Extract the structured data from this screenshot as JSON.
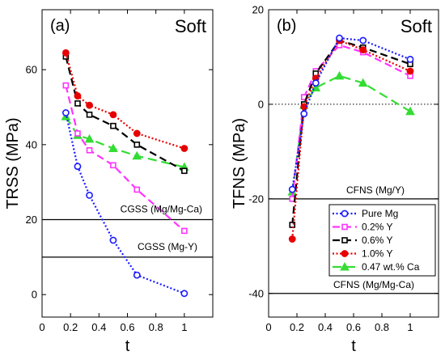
{
  "colors": {
    "Pure Mg": "#1a1aff",
    "0.2% Y": "#ff33ff",
    "0.6% Y": "#000000",
    "1.0% Y": "#e60000",
    "0.47 wt.% Ca": "#33dd33"
  },
  "chart_data": [
    {
      "type": "line",
      "panel_label": "(a)",
      "annotation": "Soft",
      "xlabel": "t",
      "ylabel": "TRSS (MPa)",
      "xlim": [
        0,
        1.2
      ],
      "ylim": [
        -6,
        76
      ],
      "xticks": [
        "0",
        "0.2",
        "0.4",
        "0.6",
        "0.8",
        "1"
      ],
      "yticks": [
        "0",
        "20",
        "40",
        "60"
      ],
      "x": [
        0.167,
        0.25,
        0.333,
        0.5,
        0.667,
        1.0
      ],
      "series": [
        {
          "name": "Pure Mg",
          "marker": "circle",
          "values": [
            48.5,
            34.2,
            26.5,
            14.5,
            5.2,
            0.3
          ]
        },
        {
          "name": "0.2% Y",
          "marker": "square",
          "values": [
            55.8,
            43.0,
            38.5,
            34.5,
            28.0,
            17.0
          ]
        },
        {
          "name": "0.6% Y",
          "marker": "square",
          "values": [
            63.5,
            51.0,
            48.0,
            45.0,
            40.0,
            33.0
          ]
        },
        {
          "name": "1.0% Y",
          "marker": "circle",
          "values": [
            64.5,
            53.0,
            50.5,
            48.0,
            43.0,
            39.0
          ]
        },
        {
          "name": "0.47 wt.% Ca",
          "marker": "triangle",
          "values": [
            47.5,
            42.5,
            41.5,
            39.0,
            37.0,
            34.0
          ]
        }
      ],
      "reference_lines": [
        {
          "label": "CGSS (Mg/Mg-Ca)",
          "value": 20
        },
        {
          "label": "CGSS (Mg-Y)",
          "value": 10
        }
      ]
    },
    {
      "type": "line",
      "panel_label": "(b)",
      "annotation": "Soft",
      "xlabel": "t",
      "ylabel": "TFNS (MPa)",
      "xlim": [
        0,
        1.2
      ],
      "ylim": [
        -45,
        20
      ],
      "xticks": [
        "0",
        "0.2",
        "0.4",
        "0.6",
        "0.8",
        "1"
      ],
      "yticks": [
        "-40",
        "-20",
        "0",
        "20"
      ],
      "x": [
        0.167,
        0.25,
        0.333,
        0.5,
        0.667,
        1.0
      ],
      "series": [
        {
          "name": "Pure Mg",
          "marker": "circle",
          "values": [
            -18.0,
            -2.0,
            4.5,
            14.0,
            13.5,
            9.5
          ]
        },
        {
          "name": "0.2% Y",
          "marker": "square",
          "values": [
            -20.0,
            1.5,
            7.0,
            12.5,
            11.0,
            6.0
          ]
        },
        {
          "name": "0.6% Y",
          "marker": "square",
          "values": [
            -25.5,
            0.0,
            6.5,
            13.5,
            12.0,
            8.5
          ]
        },
        {
          "name": "1.0% Y",
          "marker": "circle",
          "values": [
            -28.5,
            -0.5,
            5.5,
            13.5,
            11.5,
            7.0
          ]
        },
        {
          "name": "0.47 wt.% Ca",
          "marker": "triangle",
          "values": [
            -18.5,
            -0.2,
            3.5,
            6.0,
            4.5,
            -1.5
          ]
        }
      ],
      "reference_lines": [
        {
          "label": "CFNS (Mg/Y)",
          "value": -20
        },
        {
          "label": "CFNS (Mg/Mg-Ca)",
          "value": -40
        }
      ],
      "zero_line": true,
      "legend": {
        "position": "lower-right",
        "entries": [
          "Pure Mg",
          "0.2% Y",
          "0.6% Y",
          "1.0% Y",
          "0.47 wt.% Ca"
        ]
      }
    }
  ]
}
